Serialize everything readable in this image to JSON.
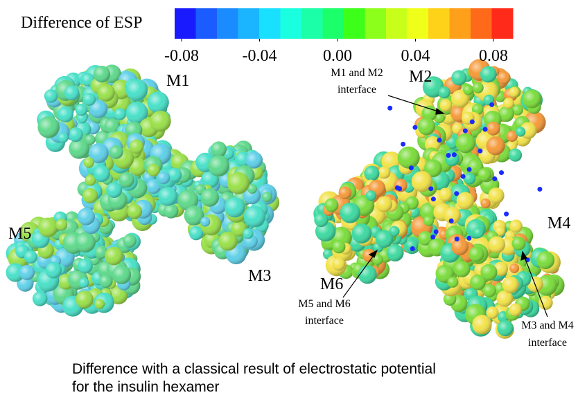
{
  "colorbar": {
    "title": "Difference of ESP",
    "lim": [
      -0.08,
      0.08
    ],
    "ticks": [
      -0.08,
      -0.04,
      {
        "value": 0,
        "label": "0.00"
      },
      0.04,
      0.08
    ],
    "colors": [
      "#1a1aff",
      "#1a5cff",
      "#1a8cff",
      "#1ab4ff",
      "#1ae0ff",
      "#1affe0",
      "#1affa8",
      "#1aff6a",
      "#3cff1a",
      "#8cff1a",
      "#c8ff1a",
      "#f0ff1a",
      "#ffd21a",
      "#ffa01a",
      "#ff6a1a",
      "#ff2a1a"
    ]
  },
  "labels": {
    "m1": "M1",
    "m2": "M2",
    "m3": "M3",
    "m4": "M4",
    "m5": "M5",
    "m6": "M6"
  },
  "interfaces": {
    "m1_m2": [
      "M1 and M2",
      "interface"
    ],
    "m5_m6": [
      "M5 and M6",
      "interface"
    ],
    "m3_m4": [
      "M3 and M4",
      "interface"
    ]
  },
  "caption": [
    "Difference with a classical result of electrostatic potential",
    "for the insulin hexamer"
  ]
}
